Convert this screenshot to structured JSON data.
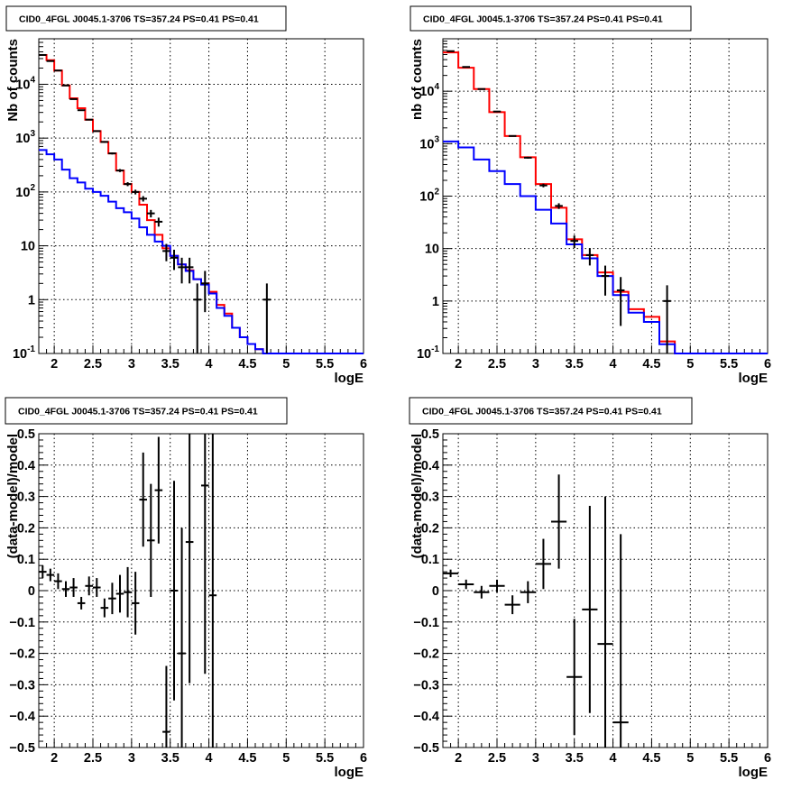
{
  "figure_title": "CID0_4FGL J0045.1-3706 TS=357.24 PS=0.41 PS=0.41",
  "colors": {
    "model_total": "#ff0000",
    "model_background": "#0000ff",
    "data": "#000000"
  },
  "chart_data": [
    {
      "id": "counts-left",
      "type": "line",
      "title": "CID0_4FGL J0045.1-3706 TS=357.24 PS=0.41 PS=0.41",
      "xlabel": "logE",
      "ylabel": "Nb of counts",
      "log_y": true,
      "xlim": [
        1.8,
        6.0
      ],
      "ylim": [
        0.1,
        70000
      ],
      "xticks": [
        2,
        2.5,
        3,
        3.5,
        4,
        4.5,
        5,
        5.5,
        6
      ],
      "xtick_labels": [
        "2",
        "2.5",
        "3",
        "3.5",
        "4",
        "4.5",
        "5",
        "5.5",
        "6"
      ],
      "yticks": [
        0.1,
        1,
        10,
        100,
        1000,
        10000
      ],
      "ytick_labels": [
        "10^-1",
        "1",
        "10",
        "10^2",
        "10^3",
        "10^4"
      ],
      "grid": true,
      "bin_edges": [
        1.8,
        1.9,
        2.0,
        2.1,
        2.2,
        2.3,
        2.4,
        2.5,
        2.6,
        2.7,
        2.8,
        2.9,
        3.0,
        3.1,
        3.2,
        3.3,
        3.4,
        3.5,
        3.6,
        3.7,
        3.8,
        3.9,
        4.0,
        4.1,
        4.2,
        4.3,
        4.4,
        4.5,
        4.6,
        4.7,
        4.8,
        4.9,
        5.0,
        5.1,
        5.2,
        5.3,
        5.4,
        5.5,
        5.6,
        5.7,
        5.8,
        5.9,
        6.0
      ],
      "series": [
        {
          "role": "model_total",
          "style": "step",
          "values": [
            35000,
            28000,
            18000,
            9500,
            5500,
            3600,
            2200,
            1350,
            850,
            520,
            250,
            140,
            100,
            58,
            30,
            16,
            9,
            6.5,
            4.5,
            3.5,
            2.4,
            2.0,
            1.4,
            0.8,
            0.55,
            0.3,
            0.2,
            0.15,
            0.12,
            0.1,
            0.1,
            0.1,
            0.1,
            0.1,
            0.1,
            0.1,
            0.1,
            0.1,
            0.1,
            0.1,
            0.1,
            0.1
          ]
        },
        {
          "role": "model_background",
          "style": "step",
          "values": [
            600,
            500,
            400,
            260,
            180,
            150,
            115,
            100,
            85,
            66,
            50,
            42,
            32,
            22,
            16,
            12,
            10,
            6.5,
            4.5,
            3.4,
            2.4,
            1.9,
            1.3,
            0.7,
            0.5,
            0.3,
            0.2,
            0.15,
            0.12,
            0.1,
            0.1,
            0.1,
            0.1,
            0.1,
            0.1,
            0.1,
            0.1,
            0.1,
            0.1,
            0.1,
            0.1,
            0.1
          ]
        },
        {
          "role": "data",
          "style": "points",
          "x": [
            1.85,
            1.95,
            2.05,
            2.15,
            2.25,
            2.35,
            2.45,
            2.55,
            2.65,
            2.75,
            2.85,
            2.95,
            3.05,
            3.15,
            3.25,
            3.35,
            3.45,
            3.55,
            3.65,
            3.75,
            3.85,
            3.95,
            4.75
          ],
          "y": [
            35000,
            27000,
            18000,
            9500,
            5300,
            3300,
            2200,
            1350,
            850,
            520,
            250,
            140,
            100,
            75,
            40,
            28,
            8,
            6,
            4,
            4,
            1,
            2,
            1
          ]
        }
      ]
    },
    {
      "id": "counts-right",
      "type": "line",
      "title": "CID0_4FGL J0045.1-3706 TS=357.24 PS=0.41 PS=0.41",
      "xlabel": "logE",
      "ylabel": "nb of counts",
      "log_y": true,
      "xlim": [
        1.8,
        6.0
      ],
      "ylim": [
        0.1,
        100000
      ],
      "xticks": [
        2,
        2.5,
        3,
        3.5,
        4,
        4.5,
        5,
        5.5,
        6
      ],
      "xtick_labels": [
        "2",
        "2.5",
        "3",
        "3.5",
        "4",
        "4.5",
        "5",
        "5.5",
        "6"
      ],
      "yticks": [
        0.1,
        1,
        10,
        100,
        1000,
        10000
      ],
      "ytick_labels": [
        "10^-1",
        "1",
        "10",
        "10^2",
        "10^3",
        "10^4"
      ],
      "grid": true,
      "bin_edges": [
        1.8,
        2.0,
        2.2,
        2.4,
        2.6,
        2.8,
        3.0,
        3.2,
        3.4,
        3.6,
        3.8,
        4.0,
        4.2,
        4.4,
        4.6,
        4.8,
        5.0,
        5.2,
        5.4,
        5.6,
        5.8,
        6.0
      ],
      "series": [
        {
          "role": "model_total",
          "style": "step",
          "values": [
            55000,
            28000,
            11000,
            4000,
            1400,
            550,
            170,
            60,
            15,
            7.5,
            3.5,
            1.5,
            0.7,
            0.5,
            0.17,
            0.1,
            0.1,
            0.1,
            0.1,
            0.1,
            0.1
          ]
        },
        {
          "role": "model_background",
          "style": "step",
          "values": [
            1100,
            850,
            500,
            300,
            170,
            100,
            55,
            30,
            12,
            6.5,
            3.0,
            1.3,
            0.6,
            0.4,
            0.15,
            0.1,
            0.1,
            0.1,
            0.1,
            0.1,
            0.1
          ]
        },
        {
          "role": "data",
          "style": "points",
          "x": [
            1.9,
            2.1,
            2.3,
            2.5,
            2.7,
            2.9,
            3.1,
            3.3,
            3.5,
            3.7,
            3.9,
            4.1,
            4.7
          ],
          "y": [
            58000,
            29000,
            11000,
            4100,
            1400,
            540,
            160,
            65,
            14,
            7.5,
            3,
            1.6,
            1
          ]
        }
      ]
    },
    {
      "id": "residual-left",
      "type": "scatter",
      "title": "CID0_4FGL J0045.1-3706 TS=357.24 PS=0.41 PS=0.41",
      "xlabel": "logE",
      "ylabel": "(data-model)/model",
      "xlim": [
        1.8,
        6.0
      ],
      "ylim": [
        -0.5,
        0.5
      ],
      "xticks": [
        2,
        2.5,
        3,
        3.5,
        4,
        4.5,
        5,
        5.5,
        6
      ],
      "xtick_labels": [
        "2",
        "2.5",
        "3",
        "3.5",
        "4",
        "4.5",
        "5",
        "5.5",
        "6"
      ],
      "yticks": [
        -0.5,
        -0.4,
        -0.3,
        -0.2,
        -0.1,
        0,
        0.1,
        0.2,
        0.3,
        0.4,
        0.5
      ],
      "ytick_labels": [
        "−0.5",
        "−0.4",
        "−0.3",
        "−0.2",
        "−0.1",
        "0",
        "0.1",
        "0.2",
        "0.3",
        "0.4",
        "0.5"
      ],
      "grid": true,
      "x_halfwidth": 0.05,
      "points": {
        "x": [
          1.85,
          1.95,
          2.05,
          2.15,
          2.25,
          2.35,
          2.45,
          2.55,
          2.65,
          2.75,
          2.85,
          2.95,
          3.05,
          3.15,
          3.25,
          3.35,
          3.45,
          3.55,
          3.65,
          3.75,
          3.95,
          4.05
        ],
        "y": [
          0.06,
          0.05,
          0.03,
          0.005,
          0.01,
          -0.04,
          0.015,
          0.01,
          -0.055,
          -0.025,
          -0.01,
          -0.005,
          -0.04,
          0.29,
          0.16,
          0.32,
          -0.45,
          0.0,
          -0.2,
          0.155,
          0.335,
          -0.015
        ],
        "err": [
          0.02,
          0.02,
          0.025,
          0.025,
          0.03,
          0.02,
          0.03,
          0.03,
          0.03,
          0.05,
          0.06,
          0.08,
          0.1,
          0.15,
          0.18,
          0.17,
          0.21,
          0.35,
          0.4,
          0.45,
          0.6,
          0.7
        ]
      }
    },
    {
      "id": "residual-right",
      "type": "scatter",
      "title": "CID0_4FGL J0045.1-3706 TS=357.24 PS=0.41 PS=0.41",
      "xlabel": "logE",
      "ylabel": "(data-model)/model",
      "xlim": [
        1.8,
        6.0
      ],
      "ylim": [
        -0.5,
        0.5
      ],
      "xticks": [
        2,
        2.5,
        3,
        3.5,
        4,
        4.5,
        5,
        5.5,
        6
      ],
      "xtick_labels": [
        "2",
        "2.5",
        "3",
        "3.5",
        "4",
        "4.5",
        "5",
        "5.5",
        "6"
      ],
      "yticks": [
        -0.5,
        -0.4,
        -0.3,
        -0.2,
        -0.1,
        0,
        0.1,
        0.2,
        0.3,
        0.4,
        0.5
      ],
      "ytick_labels": [
        "−0.5",
        "−0.4",
        "−0.3",
        "−0.2",
        "−0.1",
        "0",
        "0.1",
        "0.2",
        "0.3",
        "0.4",
        "0.5"
      ],
      "grid": true,
      "x_halfwidth": 0.1,
      "points": {
        "x": [
          1.9,
          2.1,
          2.3,
          2.5,
          2.7,
          2.9,
          3.1,
          3.3,
          3.5,
          3.7,
          3.9,
          4.1
        ],
        "y": [
          0.055,
          0.02,
          -0.005,
          0.015,
          -0.045,
          -0.005,
          0.085,
          0.22,
          -0.275,
          -0.06,
          -0.17,
          -0.42
        ],
        "err": [
          0.012,
          0.015,
          0.02,
          0.02,
          0.03,
          0.035,
          0.08,
          0.15,
          0.185,
          0.33,
          0.47,
          0.6
        ]
      }
    }
  ]
}
